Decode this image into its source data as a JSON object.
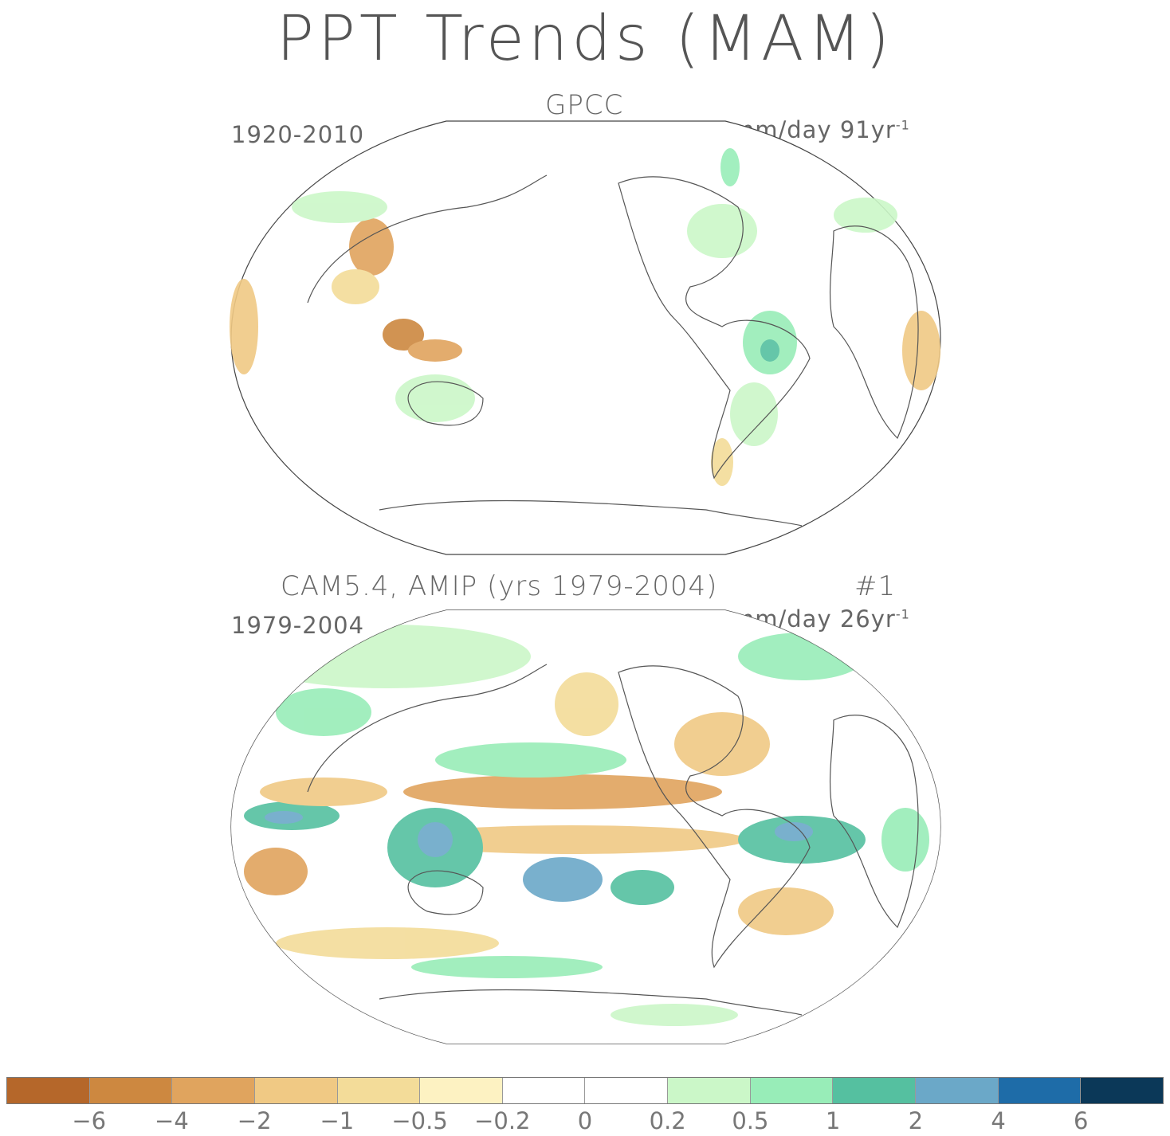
{
  "title": "PPT Trends (MAM)",
  "panels": [
    {
      "title": "GPCC",
      "period": "1920-2010",
      "units": "mm/day 91yr",
      "units_exp": "-1"
    },
    {
      "title": "CAM5.4, AMIP (yrs 1979-2004)",
      "run": "#1",
      "period": "1979-2004",
      "units": "mm/day 26yr",
      "units_exp": "-1"
    }
  ],
  "colorbar": {
    "colors": [
      "#b5672a",
      "#cd8840",
      "#e0a45e",
      "#f0c984",
      "#f3dc99",
      "#fdf2c2",
      "#ffffff",
      "#ffffff",
      "#cbf7c8",
      "#98edb8",
      "#55c0a0",
      "#6ba8c8",
      "#1e6ca8",
      "#0b3858"
    ],
    "labels": [
      "−6",
      "−4",
      "−2",
      "−1",
      "−0.5",
      "−0.2",
      "0",
      "0.2",
      "0.5",
      "1",
      "2",
      "4",
      "6"
    ]
  }
}
